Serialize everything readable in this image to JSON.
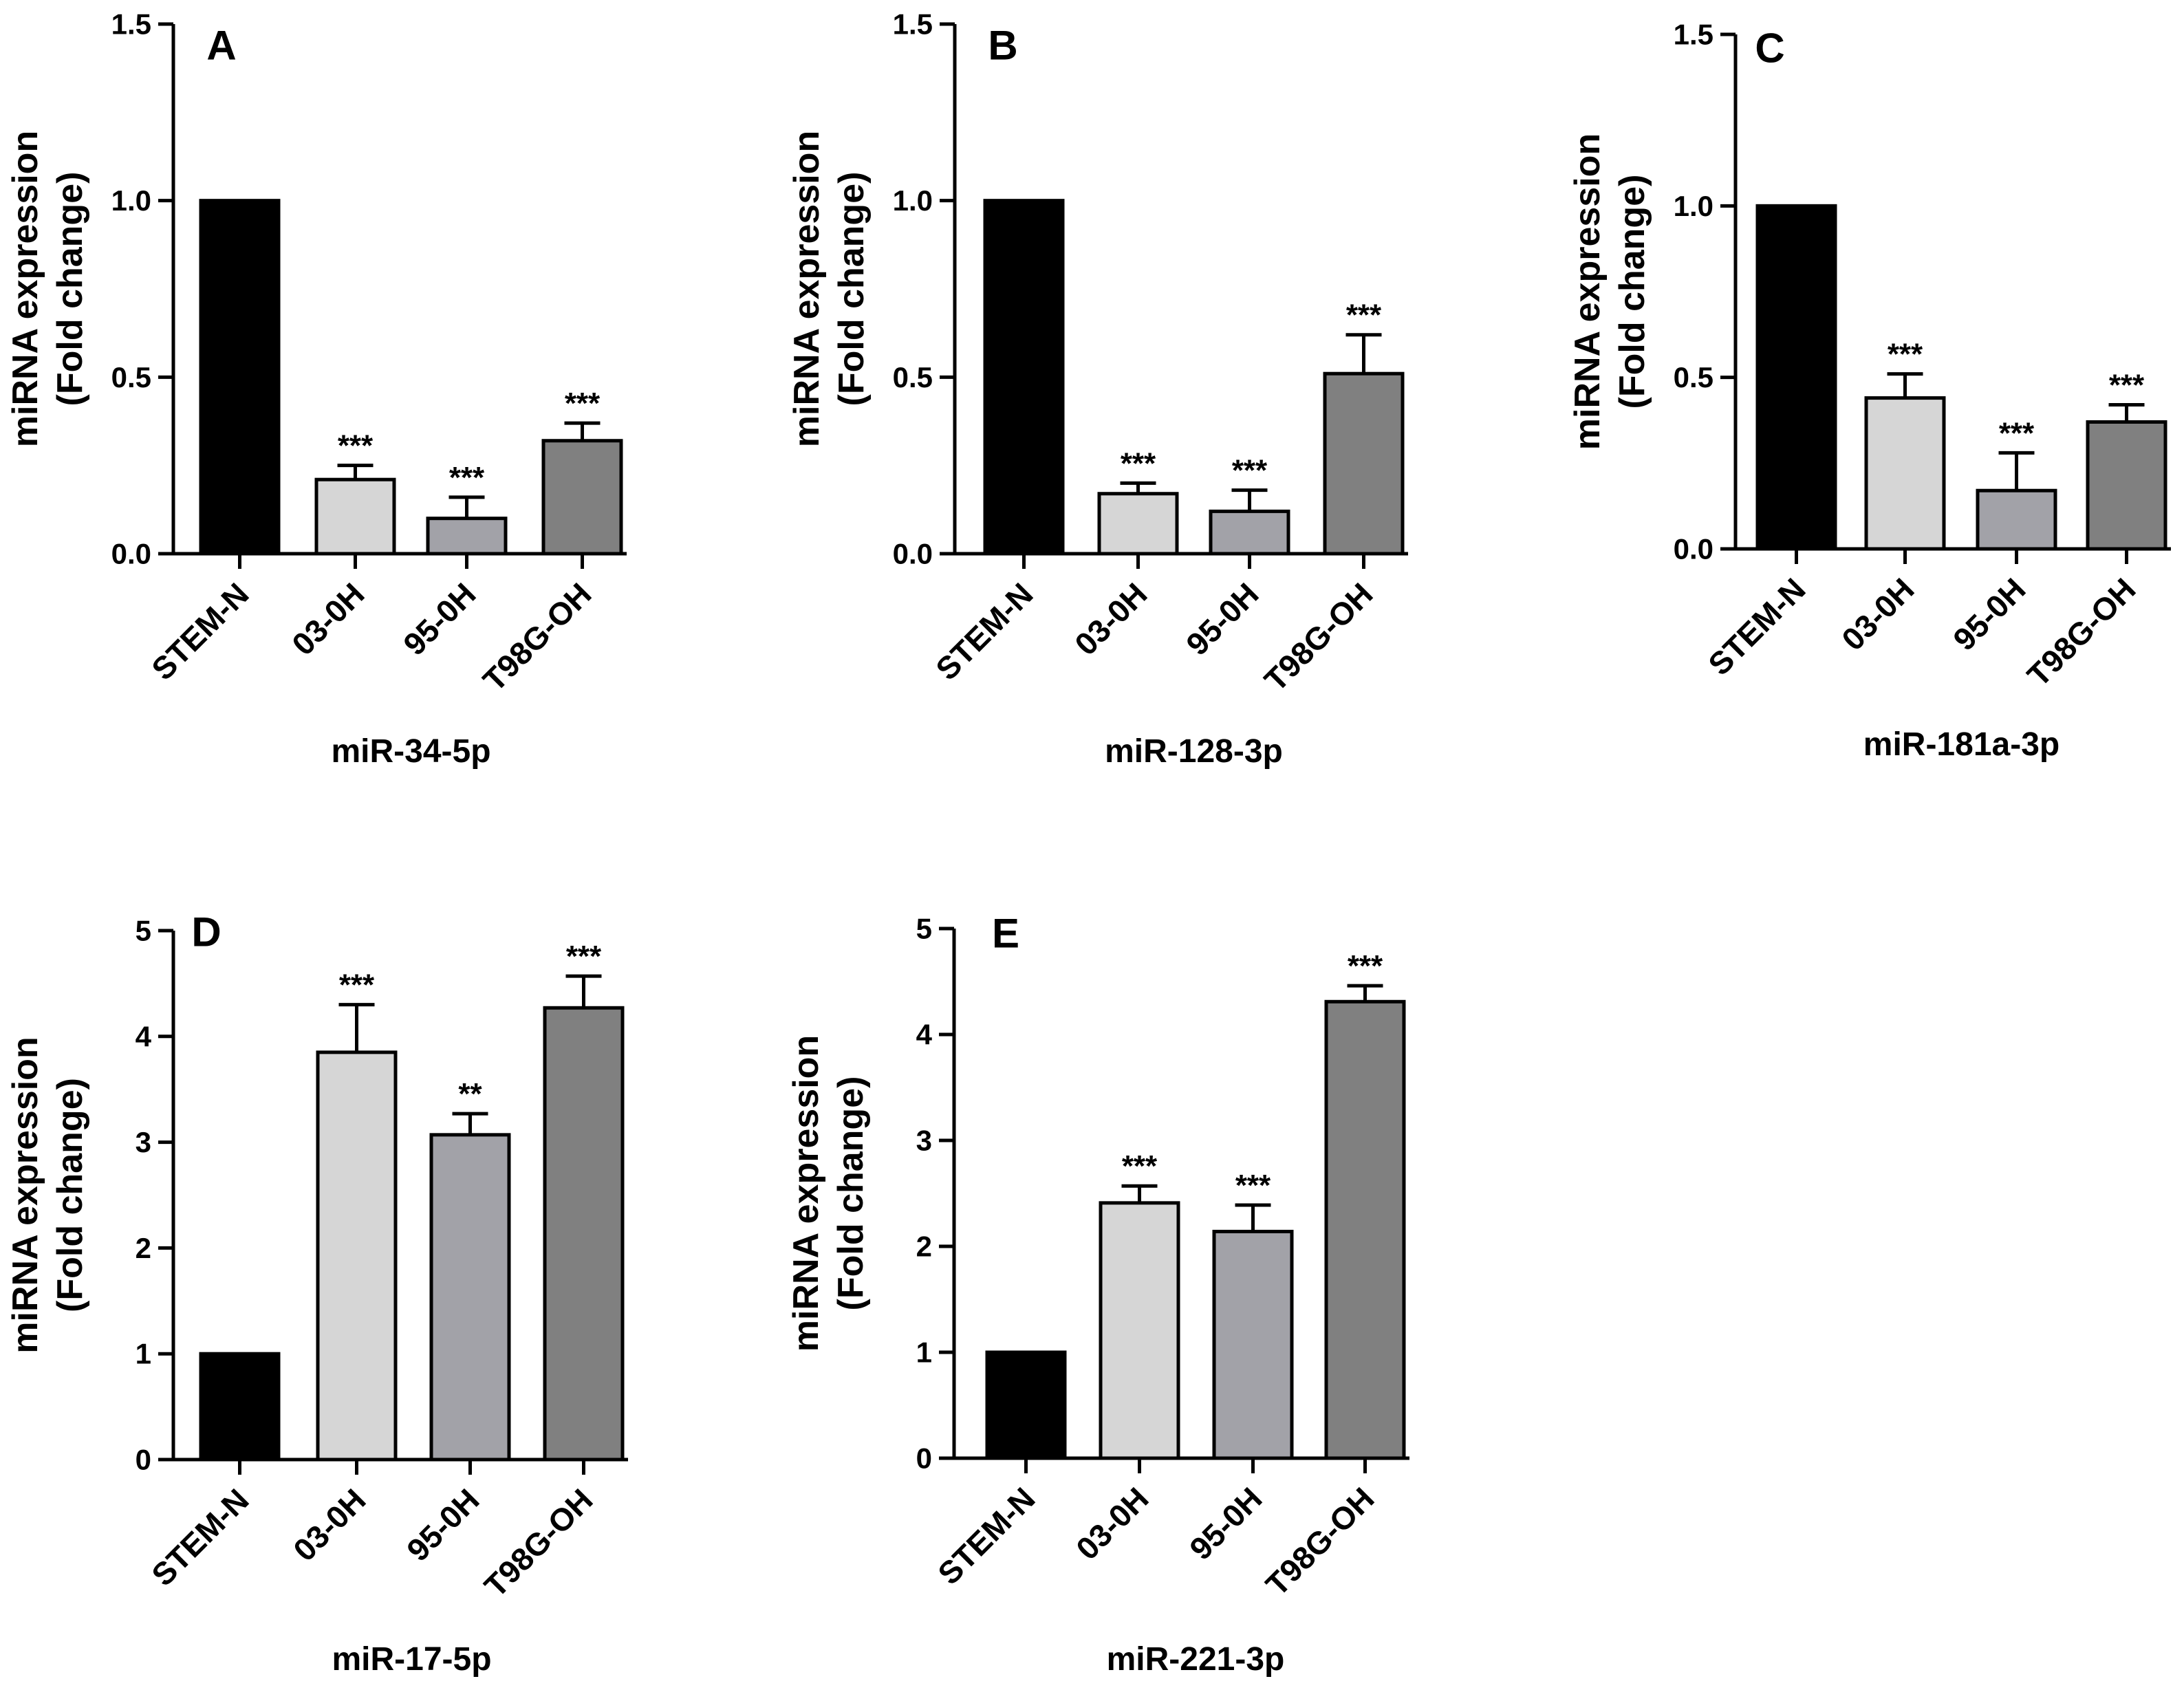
{
  "figure": {
    "colors": {
      "bar_fills": [
        "#000000",
        "#d6d6d6",
        "#a2a2a8",
        "#808080"
      ],
      "stroke": "#000000",
      "background": "#ffffff"
    }
  },
  "chart_data": [
    {
      "type": "bar",
      "panel": "A",
      "title": "miR-34-5p",
      "xlabel": "miR-34-5p",
      "ylabel": "miRNA expression",
      "ylabel2": "(Fold change)",
      "categories": [
        "STEM-N",
        "03-0H",
        "95-0H",
        "T98G-OH"
      ],
      "values": [
        1.0,
        0.21,
        0.1,
        0.32
      ],
      "errors": [
        0,
        0.04,
        0.06,
        0.05
      ],
      "significance": [
        "",
        "***",
        "***",
        "***"
      ],
      "ylim": [
        0,
        1.5
      ],
      "yticks": [
        0,
        0.5,
        1.0,
        1.5
      ],
      "ytick_labels": [
        "0.0",
        "0.5",
        "1.0",
        "1.5"
      ]
    },
    {
      "type": "bar",
      "panel": "B",
      "title": "miR-128-3p",
      "xlabel": "miR-128-3p",
      "ylabel": "miRNA expression",
      "ylabel2": "(Fold change)",
      "categories": [
        "STEM-N",
        "03-0H",
        "95-0H",
        "T98G-OH"
      ],
      "values": [
        1.0,
        0.17,
        0.12,
        0.51
      ],
      "errors": [
        0,
        0.03,
        0.06,
        0.11
      ],
      "significance": [
        "",
        "***",
        "***",
        "***"
      ],
      "ylim": [
        0,
        1.5
      ],
      "yticks": [
        0,
        0.5,
        1.0,
        1.5
      ],
      "ytick_labels": [
        "0.0",
        "0.5",
        "1.0",
        "1.5"
      ]
    },
    {
      "type": "bar",
      "panel": "C",
      "title": "miR-181a-3p",
      "xlabel": "miR-181a-3p",
      "ylabel": "miRNA expression",
      "ylabel2": "(Fold change)",
      "categories": [
        "STEM-N",
        "03-0H",
        "95-0H",
        "T98G-OH"
      ],
      "values": [
        1.0,
        0.44,
        0.17,
        0.37
      ],
      "errors": [
        0,
        0.07,
        0.11,
        0.05
      ],
      "significance": [
        "",
        "***",
        "***",
        "***"
      ],
      "ylim": [
        0,
        1.5
      ],
      "yticks": [
        0,
        0.5,
        1.0,
        1.5
      ],
      "ytick_labels": [
        "0.0",
        "0.5",
        "1.0",
        "1.5"
      ]
    },
    {
      "type": "bar",
      "panel": "D",
      "title": "miR-17-5p",
      "xlabel": "miR-17-5p",
      "ylabel": "miRNA expression",
      "ylabel2": "(Fold change)",
      "categories": [
        "STEM-N",
        "03-0H",
        "95-0H",
        "T98G-OH"
      ],
      "values": [
        1.0,
        3.85,
        3.07,
        4.27
      ],
      "errors": [
        0,
        0.45,
        0.2,
        0.3
      ],
      "significance": [
        "",
        "***",
        "**",
        "***"
      ],
      "ylim": [
        0,
        5
      ],
      "yticks": [
        0,
        1,
        2,
        3,
        4,
        5
      ],
      "ytick_labels": [
        "0",
        "1",
        "2",
        "3",
        "4",
        "5"
      ]
    },
    {
      "type": "bar",
      "panel": "E",
      "title": "miR-221-3p",
      "xlabel": "miR-221-3p",
      "ylabel": "miRNA expression",
      "ylabel2": "(Fold change)",
      "categories": [
        "STEM-N",
        "03-0H",
        "95-0H",
        "T98G-OH"
      ],
      "values": [
        1.0,
        2.41,
        2.14,
        4.31
      ],
      "errors": [
        0,
        0.16,
        0.25,
        0.15
      ],
      "significance": [
        "",
        "***",
        "***",
        "***"
      ],
      "ylim": [
        0,
        5
      ],
      "yticks": [
        0,
        1,
        2,
        3,
        4,
        5
      ],
      "ytick_labels": [
        "0",
        "1",
        "2",
        "3",
        "4",
        "5"
      ]
    }
  ]
}
